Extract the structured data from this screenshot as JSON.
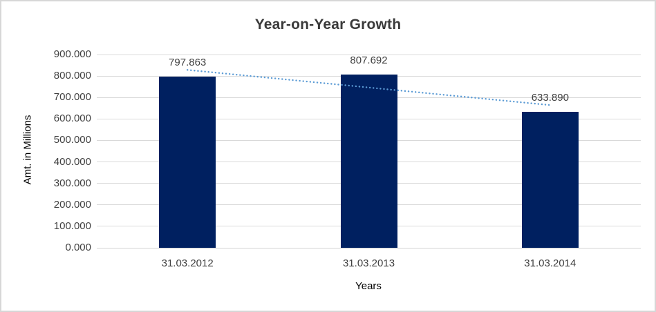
{
  "chart_data": {
    "type": "bar",
    "title": "Year-on-Year Growth",
    "xlabel": "Years",
    "ylabel": "Amt. in Millions",
    "categories": [
      "31.03.2012",
      "31.03.2013",
      "31.03.2014"
    ],
    "values": [
      797.863,
      807.692,
      633.89
    ],
    "value_labels": [
      "797.863",
      "807.692",
      "633.890"
    ],
    "ylim": [
      0,
      900
    ],
    "yticks": [
      0,
      100,
      200,
      300,
      400,
      500,
      600,
      700,
      800,
      900
    ],
    "ytick_labels": [
      "0.000",
      "100.000",
      "200.000",
      "300.000",
      "400.000",
      "500.000",
      "600.000",
      "700.000",
      "800.000",
      "900.000"
    ],
    "grid": true,
    "legend": "none",
    "trendline": {
      "type": "linear",
      "style": "dotted",
      "color": "#5b9bd5"
    },
    "colors": {
      "bar": "#002060",
      "gridline": "#d9d9d9",
      "axis_line": "#d3d3d3",
      "tick_text": "#404040",
      "label_text": "#404040",
      "title_text": "#3a3a3a"
    }
  }
}
